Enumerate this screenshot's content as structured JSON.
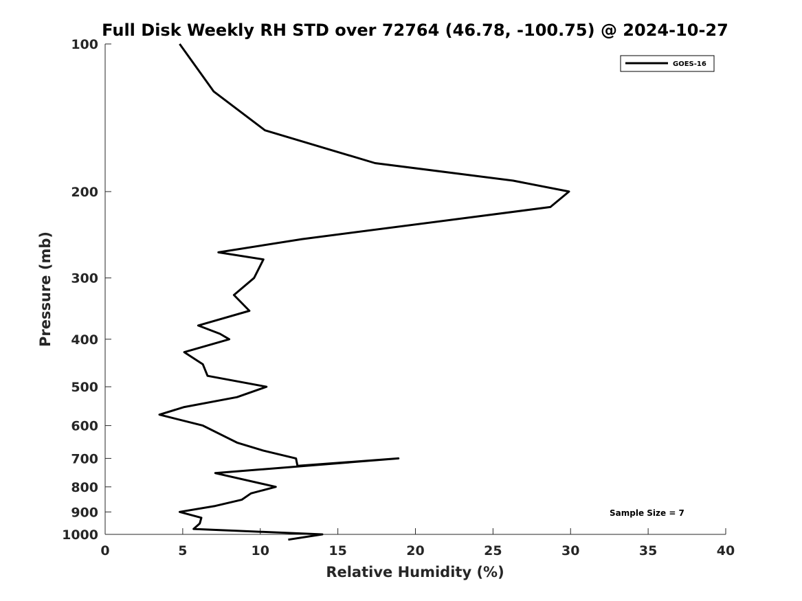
{
  "chart_data": {
    "type": "line",
    "title": "Full Disk Weekly RH STD over 72764 (46.78, -100.75) @ 2024-10-27",
    "xlabel": "Relative Humidity (%)",
    "ylabel": "Pressure (mb)",
    "xlim": [
      0,
      40
    ],
    "ylim": [
      100,
      1000
    ],
    "y_scale": "log",
    "y_reversed": true,
    "x_ticks": [
      "0",
      "5",
      "10",
      "15",
      "20",
      "25",
      "30",
      "35",
      "40"
    ],
    "y_ticks": [
      "100",
      "200",
      "300",
      "400",
      "500",
      "600",
      "700",
      "800",
      "900",
      "1000"
    ],
    "grid": false,
    "legend_position": "top-right",
    "annotation": "Sample Size = 7",
    "series": [
      {
        "name": "GOES-16",
        "color": "#000000",
        "points": [
          [
            4.8,
            100
          ],
          [
            7.0,
            125
          ],
          [
            10.3,
            150
          ],
          [
            17.4,
            175
          ],
          [
            26.3,
            190
          ],
          [
            29.9,
            200
          ],
          [
            28.7,
            215
          ],
          [
            12.7,
            250
          ],
          [
            7.3,
            266
          ],
          [
            10.2,
            275
          ],
          [
            9.6,
            300
          ],
          [
            8.3,
            325
          ],
          [
            9.3,
            350
          ],
          [
            6.0,
            375
          ],
          [
            7.4,
            390
          ],
          [
            8.0,
            400
          ],
          [
            5.1,
            425
          ],
          [
            6.3,
            450
          ],
          [
            6.6,
            475
          ],
          [
            10.4,
            500
          ],
          [
            8.5,
            525
          ],
          [
            5.1,
            550
          ],
          [
            3.5,
            570
          ],
          [
            6.3,
            600
          ],
          [
            8.5,
            650
          ],
          [
            10.2,
            675
          ],
          [
            12.3,
            700
          ],
          [
            12.4,
            725
          ],
          [
            18.9,
            700
          ],
          [
            7.1,
            750
          ],
          [
            11.0,
            800
          ],
          [
            9.4,
            825
          ],
          [
            8.8,
            850
          ],
          [
            7.1,
            875
          ],
          [
            4.8,
            900
          ],
          [
            6.2,
            925
          ],
          [
            6.1,
            950
          ],
          [
            5.7,
            975
          ],
          [
            14.0,
            1000
          ],
          [
            11.8,
            1025
          ]
        ]
      }
    ]
  }
}
